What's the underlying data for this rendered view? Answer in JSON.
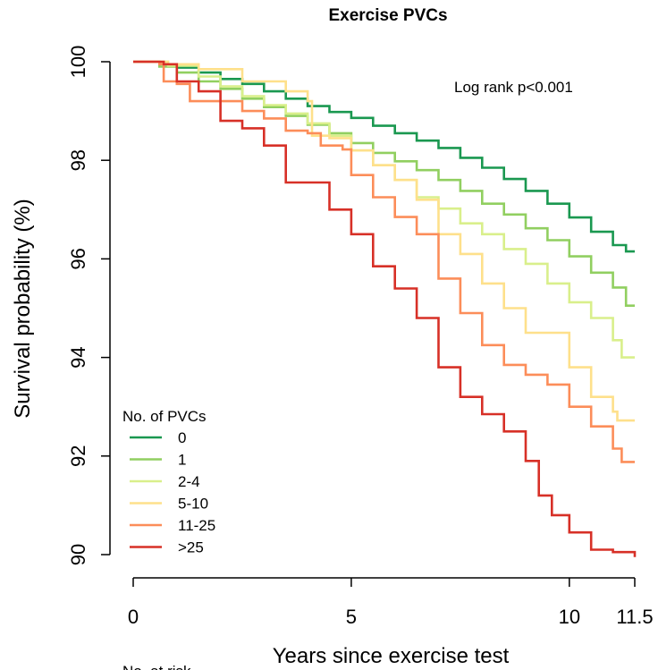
{
  "chart_data": {
    "type": "line",
    "title": "Exercise PVCs",
    "xlabel": "Years since exercise test",
    "ylabel": "Survival probability (%)",
    "xlim": [
      0,
      11.5
    ],
    "ylim": [
      90,
      100
    ],
    "x_ticks": [
      0,
      5,
      10,
      11.5
    ],
    "x_tick_labels": [
      "0",
      "5",
      "10",
      "11.5"
    ],
    "y_ticks": [
      90,
      92,
      94,
      96,
      98,
      100
    ],
    "y_tick_labels": [
      "90",
      "92",
      "94",
      "96",
      "98",
      "100"
    ],
    "annotation": "Log rank p<0.001",
    "legend": {
      "title": "No. of PVCs",
      "placement": "bottom-left"
    },
    "grid": false,
    "series": [
      {
        "name": "0",
        "color": "#1a9850",
        "points": [
          [
            0,
            100
          ],
          [
            0.6,
            99.95
          ],
          [
            1.0,
            99.88
          ],
          [
            1.5,
            99.78
          ],
          [
            2.0,
            99.65
          ],
          [
            2.5,
            99.55
          ],
          [
            3.0,
            99.4
          ],
          [
            3.5,
            99.25
          ],
          [
            4.0,
            99.1
          ],
          [
            4.5,
            98.98
          ],
          [
            5.0,
            98.86
          ],
          [
            5.5,
            98.7
          ],
          [
            6.0,
            98.55
          ],
          [
            6.5,
            98.4
          ],
          [
            7.0,
            98.25
          ],
          [
            7.5,
            98.05
          ],
          [
            8.0,
            97.85
          ],
          [
            8.5,
            97.62
          ],
          [
            9.0,
            97.38
          ],
          [
            9.5,
            97.12
          ],
          [
            10.0,
            96.84
          ],
          [
            10.5,
            96.55
          ],
          [
            11.0,
            96.28
          ],
          [
            11.3,
            96.15
          ],
          [
            11.5,
            96.15
          ]
        ]
      },
      {
        "name": "1",
        "color": "#91cf60",
        "points": [
          [
            0,
            100
          ],
          [
            0.6,
            99.9
          ],
          [
            1.0,
            99.78
          ],
          [
            1.5,
            99.6
          ],
          [
            2.0,
            99.45
          ],
          [
            2.5,
            99.25
          ],
          [
            3.0,
            99.08
          ],
          [
            3.5,
            98.9
          ],
          [
            4.0,
            98.72
          ],
          [
            4.5,
            98.55
          ],
          [
            5.0,
            98.35
          ],
          [
            5.5,
            98.15
          ],
          [
            6.0,
            97.98
          ],
          [
            6.5,
            97.8
          ],
          [
            7.0,
            97.6
          ],
          [
            7.5,
            97.38
          ],
          [
            8.0,
            97.12
          ],
          [
            8.5,
            96.9
          ],
          [
            9.0,
            96.62
          ],
          [
            9.5,
            96.38
          ],
          [
            10.0,
            96.05
          ],
          [
            10.5,
            95.72
          ],
          [
            11.0,
            95.42
          ],
          [
            11.3,
            95.05
          ],
          [
            11.5,
            95.05
          ]
        ]
      },
      {
        "name": "2-4",
        "color": "#d9ef8b",
        "points": [
          [
            0,
            100
          ],
          [
            0.8,
            99.92
          ],
          [
            1.5,
            99.7
          ],
          [
            2.0,
            99.5
          ],
          [
            2.5,
            99.3
          ],
          [
            3.0,
            99.12
          ],
          [
            3.5,
            98.95
          ],
          [
            4.0,
            98.75
          ],
          [
            4.5,
            98.5
          ],
          [
            5.0,
            98.2
          ],
          [
            5.5,
            97.9
          ],
          [
            6.0,
            97.6
          ],
          [
            6.5,
            97.25
          ],
          [
            7.0,
            97.02
          ],
          [
            7.5,
            96.72
          ],
          [
            8.0,
            96.5
          ],
          [
            8.5,
            96.2
          ],
          [
            9.0,
            95.9
          ],
          [
            9.5,
            95.5
          ],
          [
            10.0,
            95.12
          ],
          [
            10.5,
            94.8
          ],
          [
            11.0,
            94.35
          ],
          [
            11.2,
            94.0
          ],
          [
            11.5,
            94.0
          ]
        ]
      },
      {
        "name": "5-10",
        "color": "#fee08b",
        "points": [
          [
            0,
            100
          ],
          [
            0.8,
            99.95
          ],
          [
            1.5,
            99.85
          ],
          [
            2.5,
            99.6
          ],
          [
            3.5,
            99.4
          ],
          [
            4.0,
            99.2
          ],
          [
            4.1,
            98.5
          ],
          [
            4.5,
            98.45
          ],
          [
            5.0,
            98.2
          ],
          [
            5.5,
            97.9
          ],
          [
            6.0,
            97.6
          ],
          [
            6.5,
            97.2
          ],
          [
            7.0,
            96.5
          ],
          [
            7.5,
            96.1
          ],
          [
            8.0,
            95.5
          ],
          [
            8.5,
            95.0
          ],
          [
            9.0,
            94.5
          ],
          [
            9.5,
            94.5
          ],
          [
            10.0,
            93.8
          ],
          [
            10.5,
            93.2
          ],
          [
            11.0,
            92.9
          ],
          [
            11.1,
            92.72
          ],
          [
            11.5,
            92.72
          ]
        ]
      },
      {
        "name": "11-25",
        "color": "#fc8d59",
        "points": [
          [
            0,
            100
          ],
          [
            0.6,
            99.95
          ],
          [
            0.7,
            99.6
          ],
          [
            1.0,
            99.55
          ],
          [
            1.3,
            99.2
          ],
          [
            2.0,
            99.2
          ],
          [
            2.5,
            99.0
          ],
          [
            3.0,
            98.85
          ],
          [
            3.5,
            98.6
          ],
          [
            4.0,
            98.55
          ],
          [
            4.3,
            98.3
          ],
          [
            4.8,
            98.22
          ],
          [
            5.0,
            97.7
          ],
          [
            5.5,
            97.25
          ],
          [
            6.0,
            96.85
          ],
          [
            6.5,
            96.5
          ],
          [
            7.0,
            95.6
          ],
          [
            7.5,
            94.9
          ],
          [
            8.0,
            94.25
          ],
          [
            8.5,
            93.85
          ],
          [
            9.0,
            93.65
          ],
          [
            9.5,
            93.45
          ],
          [
            10.0,
            93.0
          ],
          [
            10.5,
            92.6
          ],
          [
            11.0,
            92.15
          ],
          [
            11.2,
            91.88
          ],
          [
            11.5,
            91.88
          ]
        ]
      },
      {
        "name": ">25",
        "color": "#d73027",
        "points": [
          [
            0,
            100
          ],
          [
            0.7,
            99.95
          ],
          [
            1.0,
            99.6
          ],
          [
            1.5,
            99.4
          ],
          [
            2.0,
            98.8
          ],
          [
            2.5,
            98.65
          ],
          [
            3.0,
            98.3
          ],
          [
            3.5,
            97.55
          ],
          [
            4.0,
            97.55
          ],
          [
            4.5,
            97.0
          ],
          [
            5.0,
            96.5
          ],
          [
            5.5,
            95.85
          ],
          [
            6.0,
            95.4
          ],
          [
            6.5,
            94.8
          ],
          [
            7.0,
            93.8
          ],
          [
            7.5,
            93.2
          ],
          [
            8.0,
            92.85
          ],
          [
            8.5,
            92.5
          ],
          [
            9.0,
            91.9
          ],
          [
            9.3,
            91.2
          ],
          [
            9.6,
            90.8
          ],
          [
            10.0,
            90.45
          ],
          [
            10.5,
            90.1
          ],
          [
            11.0,
            90.05
          ],
          [
            11.5,
            89.95
          ]
        ]
      }
    ]
  },
  "footer_text": "No. at risk"
}
